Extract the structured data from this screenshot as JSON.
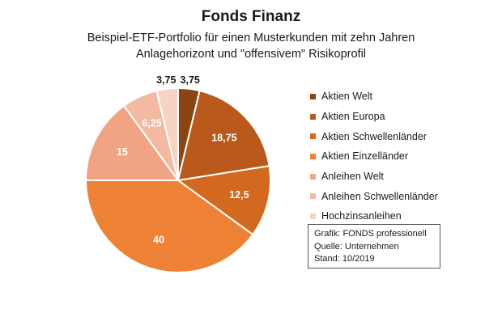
{
  "chart_data": {
    "type": "pie",
    "title": "Fonds Finanz",
    "subtitle_lines": [
      "Beispiel-ETF-Portfolio für einen Musterkunden mit zehn Jahren",
      "Anlagehorizont und \"offensivem\" Risikoprofil"
    ],
    "categories": [
      "Aktien Welt",
      "Aktien Europa",
      "Aktien Schwellenländer",
      "Aktien Einzelländer",
      "Anleihen Welt",
      "Anleihen Schwellenländer",
      "Hochzinsanleihen"
    ],
    "values": [
      3.75,
      18.75,
      12.5,
      40,
      15,
      6.25,
      3.75
    ],
    "value_labels": [
      "3,75",
      "18,75",
      "12,5",
      "40",
      "15",
      "6,25",
      "3,75"
    ],
    "colors": [
      "#8B4513",
      "#B95A1C",
      "#D2691E",
      "#ED8236",
      "#F0A483",
      "#F4B9A0",
      "#F8D3C3"
    ],
    "label_colors": [
      "#1a1a1a",
      "#ffffff",
      "#ffffff",
      "#ffffff",
      "#ffffff",
      "#ffffff",
      "#1a1a1a"
    ],
    "legend_position": "right"
  },
  "source": {
    "grafik": "Grafik: FONDS professionell",
    "quelle": "Quelle: Unternehmen",
    "stand": "Stand: 10/2019"
  }
}
